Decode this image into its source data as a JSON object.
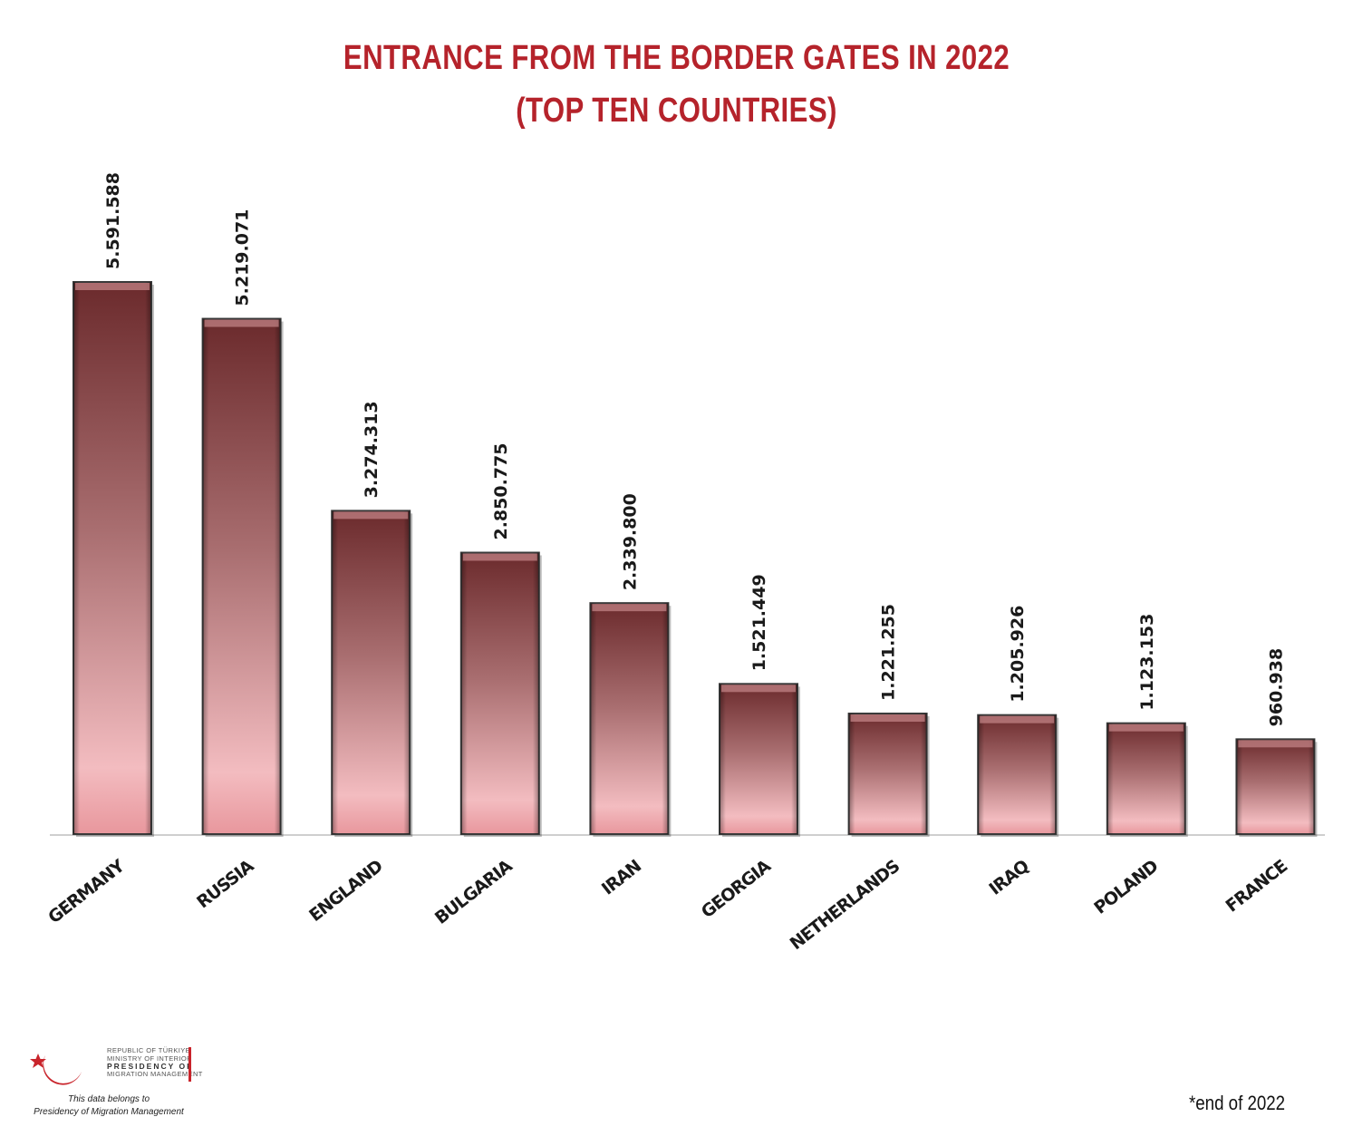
{
  "header": {
    "title_line1": "ENTRANCE FROM THE BORDER GATES IN 2022",
    "title_line2": "(TOP TEN COUNTRIES)"
  },
  "chart_data": {
    "type": "bar",
    "categories": [
      "GERMANY",
      "RUSSIA",
      "ENGLAND",
      "BULGARIA",
      "IRAN",
      "GEORGIA",
      "NETHERLANDS",
      "IRAQ",
      "POLAND",
      "FRANCE"
    ],
    "values": [
      5591588,
      5219071,
      3274313,
      2850775,
      2339800,
      1521449,
      1221255,
      1205926,
      1123153,
      960938
    ],
    "value_labels": [
      "5.591.588",
      "5.219.071",
      "3.274.313",
      "2.850.775",
      "2.339.800",
      "1.521.449",
      "1.221.255",
      "1.205.926",
      "1.123.153",
      "960.938"
    ],
    "title": "ENTRANCE FROM THE BORDER GATES IN 2022",
    "subtitle": "(TOP TEN COUNTRIES)",
    "ylim": [
      0,
      5591588
    ],
    "grid": false,
    "colors": {
      "bar_top": "#6b2a2c",
      "bar_bottom": "#f3bcc0",
      "bar_border": "#3a3a3a"
    }
  },
  "logo": {
    "line1": "REPUBLIC OF TÜRKIYE",
    "line2": "MINISTRY OF INTERIOR",
    "line3": "PRESIDENCY OF",
    "line4": "MIGRATION MANAGEMENT",
    "note_line1": "This data belongs to",
    "note_line2": "Presidency of Migration Management"
  },
  "footnote": "*end of 2022"
}
